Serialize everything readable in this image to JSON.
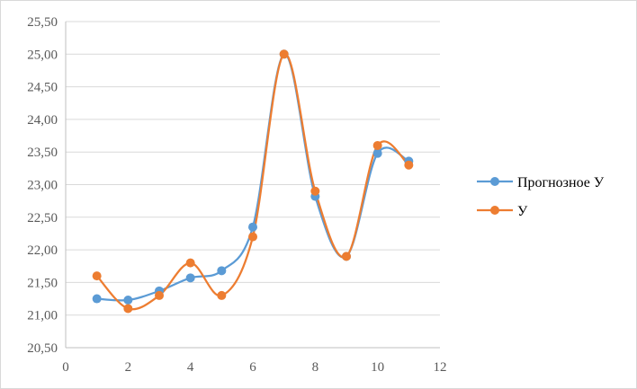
{
  "chart_data": {
    "type": "scatter",
    "title": "",
    "xlabel": "",
    "ylabel": "",
    "xlim": [
      0,
      12
    ],
    "ylim": [
      20.5,
      25.5
    ],
    "x_ticks": [
      "0",
      "2",
      "4",
      "6",
      "8",
      "10",
      "12"
    ],
    "y_ticks": [
      "20,50",
      "21,00",
      "21,50",
      "22,00",
      "22,50",
      "23,00",
      "23,50",
      "24,00",
      "24,50",
      "25,00",
      "25,50"
    ],
    "grid": "horizontal",
    "legend_position": "right",
    "smooth_lines": true,
    "series": [
      {
        "name": "Прогнозное У",
        "color": "#5b9bd5",
        "x": [
          1,
          2,
          3,
          4,
          5,
          6,
          7,
          8,
          9,
          10,
          11
        ],
        "y": [
          21.25,
          21.23,
          21.37,
          21.57,
          21.68,
          22.35,
          25.0,
          22.82,
          21.9,
          23.48,
          23.36
        ]
      },
      {
        "name": "У",
        "color": "#ed7d31",
        "x": [
          1,
          2,
          3,
          4,
          5,
          6,
          7,
          8,
          9,
          10,
          11
        ],
        "y": [
          21.6,
          21.1,
          21.3,
          21.8,
          21.3,
          22.2,
          25.0,
          22.9,
          21.9,
          23.6,
          23.3
        ]
      }
    ]
  }
}
